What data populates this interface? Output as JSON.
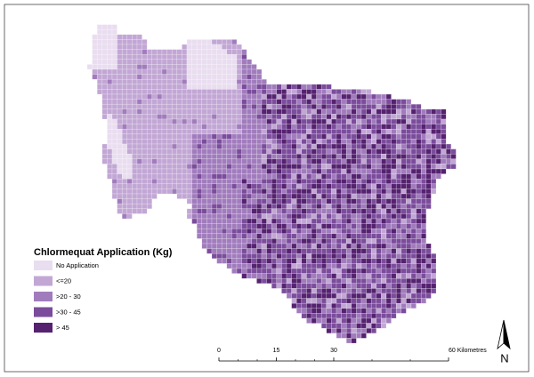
{
  "legend": {
    "title": "Chlormequat Application (Kg)",
    "items": [
      {
        "label": "No Application",
        "color": "#e9ddf0"
      },
      {
        "label": "<=20",
        "color": "#c2a7d5"
      },
      {
        "label": ">20 - 30",
        "color": "#a17cbd"
      },
      {
        "label": ">30 - 45",
        "color": "#7b4c9c"
      },
      {
        "label": "> 45",
        "color": "#55226f"
      }
    ]
  },
  "scale_bar": {
    "ticks": [
      0,
      15,
      30,
      {
        "value": 60,
        "label": "60 Kilometres"
      }
    ]
  },
  "north_arrow": {
    "label": "N"
  }
}
